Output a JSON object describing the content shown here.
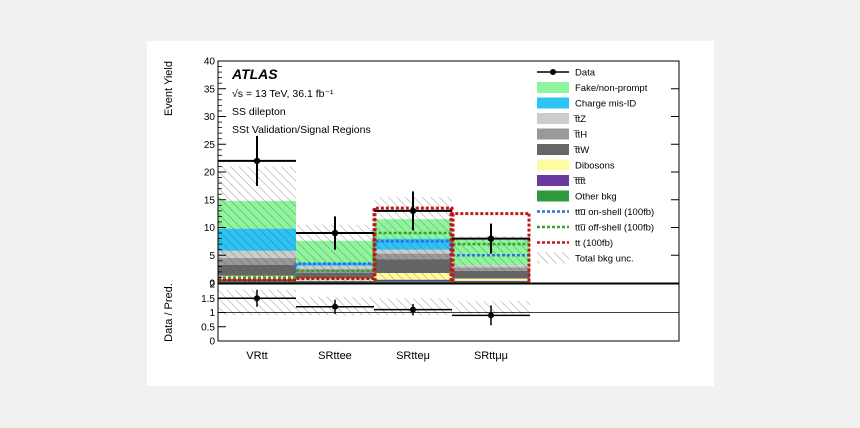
{
  "chart_data": {
    "type": "bar",
    "stacked": true,
    "experiment": "ATLAS",
    "annotations": [
      "√s = 13 TeV, 36.1 fb⁻¹",
      "SS dilepton",
      "SSt Validation/Signal Regions"
    ],
    "categories": [
      "VRtt",
      "SRttee",
      "SRtteμ",
      "SRttμμ"
    ],
    "ylabel": "Event Yield",
    "ylim": [
      0,
      40
    ],
    "yticks": [
      0,
      5,
      10,
      15,
      20,
      25,
      30,
      35,
      40
    ],
    "ratio_ylabel": "Data / Pred.",
    "ratio_ylim": [
      0,
      2
    ],
    "ratio_yticks": [
      0,
      0.5,
      1,
      1.5,
      2
    ],
    "ratio_ytick_labels": [
      "0",
      "0.5",
      "1",
      "1.5",
      "2"
    ],
    "series": [
      {
        "name": "Other bkg",
        "color": "#2e9a3a",
        "values": [
          0.3,
          0.2,
          0.3,
          0.2
        ]
      },
      {
        "name": "t̅tt̅t",
        "color": "#6a3aa0",
        "values": [
          0.4,
          0.2,
          0.3,
          0.2
        ]
      },
      {
        "name": "Dibosons",
        "color": "#fffba0",
        "values": [
          0.6,
          0.4,
          1.2,
          0.4
        ]
      },
      {
        "name": "t̅tW",
        "color": "#666666",
        "values": [
          2.0,
          1.0,
          2.5,
          1.4
        ]
      },
      {
        "name": "t̅tH",
        "color": "#999999",
        "values": [
          1.2,
          0.7,
          1.0,
          0.6
        ]
      },
      {
        "name": "t̅tZ",
        "color": "#cccccc",
        "values": [
          1.3,
          0.6,
          0.7,
          0.4
        ]
      },
      {
        "name": "Charge mis-ID",
        "color": "#2cc3f5",
        "values": [
          4.0,
          0.5,
          2.0,
          0.0
        ]
      },
      {
        "name": "Fake/non-prompt",
        "color": "#8ef59c",
        "values": [
          5.0,
          4.0,
          3.5,
          4.6
        ]
      }
    ],
    "signals": [
      {
        "name": "ttu̅ on-shell (100fb)",
        "color": "#2f6fe0",
        "values": [
          0.8,
          3.5,
          7.5,
          5.0
        ]
      },
      {
        "name": "ttu̅ off-shell (100fb)",
        "color": "#3aa030",
        "values": [
          1.0,
          2.2,
          9.0,
          7.0
        ]
      },
      {
        "name": "tt (100fb)",
        "color": "#c01818",
        "values": [
          0.5,
          0.8,
          13.5,
          12.5
        ]
      }
    ],
    "data": {
      "name": "Data",
      "values": [
        22,
        9,
        13,
        8
      ],
      "err_up": [
        4.5,
        3.0,
        3.5,
        2.7
      ],
      "err_down": [
        4.5,
        3.0,
        3.5,
        2.7
      ]
    },
    "total_bkg_unc": {
      "name": "Total bkg unc.",
      "up": [
        21,
        10.5,
        15.5,
        8.5
      ],
      "down": [
        0.5,
        0,
        0.5,
        1.0
      ]
    },
    "ratio": {
      "values": [
        1.5,
        1.2,
        1.1,
        0.9
      ],
      "err": [
        0.3,
        0.25,
        0.2,
        0.35
      ],
      "band_up": [
        1.8,
        1.55,
        1.5,
        1.4
      ],
      "band_down": [
        0.9,
        0.9,
        0.9,
        0.95
      ]
    }
  }
}
